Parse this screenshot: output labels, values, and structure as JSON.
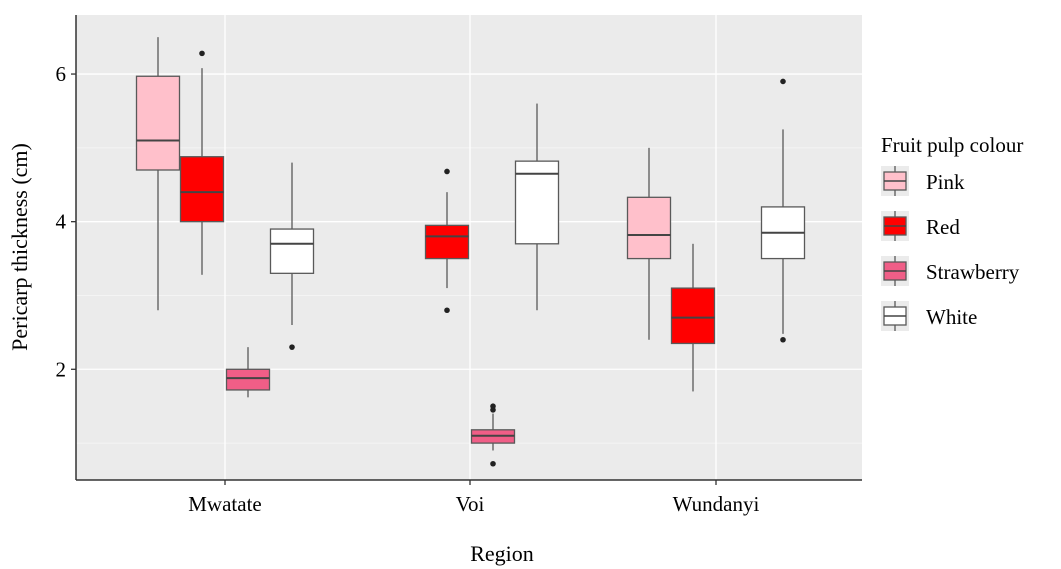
{
  "chart_data": {
    "type": "boxplot",
    "xlabel": "Region",
    "ylabel": "Pericarp thickness (cm)",
    "categories": [
      "Mwatate",
      "Voi",
      "Wundanyi"
    ],
    "y_ticks": [
      2,
      4,
      6
    ],
    "ylim": [
      0.5,
      6.8
    ],
    "grid": true,
    "legend": {
      "title": "Fruit pulp colour",
      "placement": "right"
    },
    "series": [
      {
        "name": "Pink",
        "color": "#ffc0cb"
      },
      {
        "name": "Red",
        "color": "#ff0000"
      },
      {
        "name": "Strawberry",
        "color": "#f05e87"
      },
      {
        "name": "White",
        "color": "#ffffff"
      }
    ],
    "boxes": [
      {
        "region": "Mwatate",
        "series": "Pink",
        "min": 2.8,
        "q1": 4.7,
        "median": 5.1,
        "q3": 5.97,
        "max": 6.5,
        "outliers": []
      },
      {
        "region": "Mwatate",
        "series": "Red",
        "min": 3.28,
        "q1": 4.0,
        "median": 4.4,
        "q3": 4.88,
        "max": 6.08,
        "outliers": [
          6.28
        ]
      },
      {
        "region": "Mwatate",
        "series": "Strawberry",
        "min": 1.62,
        "q1": 1.72,
        "median": 1.88,
        "q3": 2.0,
        "max": 2.3,
        "outliers": []
      },
      {
        "region": "Mwatate",
        "series": "White",
        "min": 2.6,
        "q1": 3.3,
        "median": 3.7,
        "q3": 3.9,
        "max": 4.8,
        "outliers": [
          2.3
        ]
      },
      {
        "region": "Voi",
        "series": "Red",
        "min": 3.1,
        "q1": 3.5,
        "median": 3.8,
        "q3": 3.95,
        "max": 4.4,
        "outliers": [
          4.68,
          2.8
        ]
      },
      {
        "region": "Voi",
        "series": "Strawberry",
        "min": 0.9,
        "q1": 1.0,
        "median": 1.1,
        "q3": 1.18,
        "max": 1.4,
        "outliers": [
          1.5,
          1.45,
          0.72
        ]
      },
      {
        "region": "Voi",
        "series": "White",
        "min": 2.8,
        "q1": 3.7,
        "median": 4.65,
        "q3": 4.82,
        "max": 5.6,
        "outliers": []
      },
      {
        "region": "Wundanyi",
        "series": "Pink",
        "min": 2.4,
        "q1": 3.5,
        "median": 3.82,
        "q3": 4.33,
        "max": 5.0,
        "outliers": []
      },
      {
        "region": "Wundanyi",
        "series": "Red",
        "min": 1.7,
        "q1": 2.35,
        "median": 2.7,
        "q3": 3.1,
        "max": 3.7,
        "outliers": []
      },
      {
        "region": "Wundanyi",
        "series": "White",
        "min": 2.48,
        "q1": 3.5,
        "median": 3.85,
        "q3": 4.2,
        "max": 5.25,
        "outliers": [
          5.9,
          2.4
        ]
      }
    ]
  }
}
